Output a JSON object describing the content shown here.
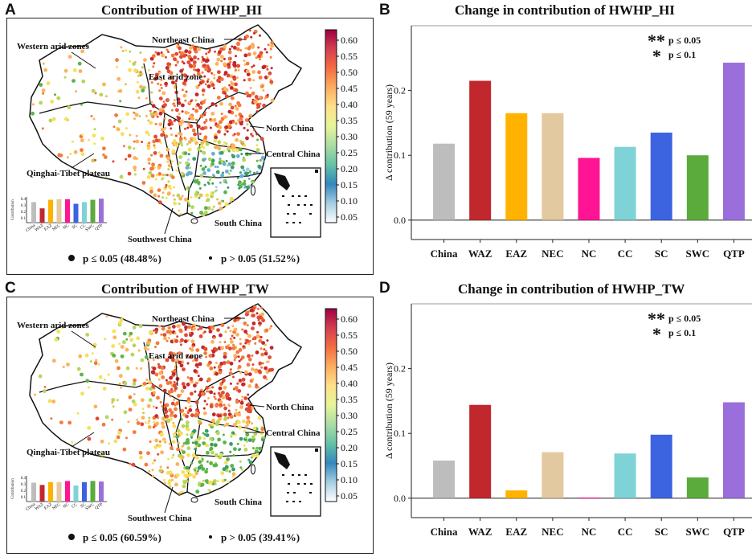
{
  "panels": {
    "A": {
      "letter": "A",
      "title": "Contribution of HWHP_HI",
      "legend_sig": "p ≤ 0.05 (48.48%)",
      "legend_nonsig": "p > 0.05 (51.52%)"
    },
    "B": {
      "letter": "B",
      "title": "Change in contribution of HWHP_HI"
    },
    "C": {
      "letter": "C",
      "title": "Contribution of HWHP_TW",
      "legend_sig": "p ≤ 0.05 (60.59%)",
      "legend_nonsig": "p > 0.05 (39.41%)"
    },
    "D": {
      "letter": "D",
      "title": "Change in contribution of HWHP_TW"
    }
  },
  "region_labels": {
    "western": "Western arid zones",
    "northeast": "Northeast China",
    "east_arid": "East arid zone",
    "north": "North China",
    "central": "Central China",
    "qtp": "Qinghai-Tibet plateau",
    "south": "South China",
    "southwest": "Southwest China"
  },
  "colorbar": {
    "ticks": [
      "0.60",
      "0.55",
      "0.50",
      "0.45",
      "0.40",
      "0.35",
      "0.30",
      "0.25",
      "0.20",
      "0.15",
      "0.10",
      "0.05"
    ],
    "colors": [
      "#9e0142",
      "#d53e4f",
      "#f46d43",
      "#fdae61",
      "#fee08b",
      "#e6f598",
      "#abdda4",
      "#66c2a5",
      "#3288bd",
      "#a6cee3",
      "#ffffff"
    ]
  },
  "inset_ylabel": "Contribution",
  "inset_yticks": [
    "0.4",
    "0.3",
    "0.2",
    "0.1"
  ],
  "sig_legend": {
    "double_star": "**",
    "single_star": "*",
    "p05": "p ≤ 0.05",
    "p1": "p ≤ 0.1"
  },
  "chart_data": [
    {
      "type": "bar",
      "panel": "B",
      "title": "Change in contribution of HWHP_HI",
      "xlabel": "",
      "ylabel": "Δ contribution (59 years)",
      "categories": [
        "China",
        "WAZ",
        "EAZ",
        "NEC",
        "NC",
        "CC",
        "SC",
        "SWC",
        "QTP"
      ],
      "values": [
        0.118,
        0.215,
        0.165,
        0.165,
        0.096,
        0.113,
        0.135,
        0.1,
        0.243
      ],
      "colors": [
        "#bdbdbd",
        "#c0282d",
        "#ffb300",
        "#e3c9a0",
        "#ff1493",
        "#7fd3d6",
        "#3c63e0",
        "#5aab3c",
        "#9a6fdc"
      ],
      "yticks": [
        "0.0",
        "0.1",
        "0.2"
      ],
      "ylim": [
        -0.03,
        0.3
      ]
    },
    {
      "type": "bar",
      "panel": "D",
      "title": "Change in contribution of HWHP_TW",
      "xlabel": "",
      "ylabel": "Δ contribution (59 years)",
      "categories": [
        "China",
        "WAZ",
        "EAZ",
        "NEC",
        "NC",
        "CC",
        "SC",
        "SWC",
        "QTP"
      ],
      "values": [
        0.058,
        0.144,
        0.012,
        0.071,
        0.001,
        0.069,
        0.098,
        0.032,
        0.148
      ],
      "colors": [
        "#bdbdbd",
        "#c0282d",
        "#ffb300",
        "#e3c9a0",
        "#ff1493",
        "#7fd3d6",
        "#3c63e0",
        "#5aab3c",
        "#9a6fdc"
      ],
      "yticks": [
        "0.0",
        "0.1",
        "0.2"
      ],
      "ylim": [
        -0.03,
        0.3
      ]
    },
    {
      "type": "bar",
      "panel": "A-inset",
      "ylabel": "Contribution",
      "categories": [
        "China",
        "WAZ",
        "EAZ",
        "NEC",
        "NC",
        "SC",
        "CC",
        "SWC",
        "QTP"
      ],
      "values": [
        0.36,
        0.25,
        0.4,
        0.41,
        0.41,
        0.33,
        0.36,
        0.4,
        0.42
      ],
      "colors": [
        "#bdbdbd",
        "#c0282d",
        "#ffb300",
        "#e3c9a0",
        "#ff1493",
        "#3c63e0",
        "#7fd3d6",
        "#5aab3c",
        "#9a6fdc"
      ],
      "ylim": [
        0,
        0.45
      ]
    },
    {
      "type": "bar",
      "panel": "C-inset",
      "ylabel": "Contribution",
      "categories": [
        "China",
        "WAZ",
        "EAZ",
        "NEC",
        "NC",
        "CC",
        "SC",
        "SWC",
        "QTP"
      ],
      "values": [
        0.33,
        0.29,
        0.34,
        0.34,
        0.36,
        0.28,
        0.34,
        0.36,
        0.35
      ],
      "colors": [
        "#bdbdbd",
        "#c0282d",
        "#ffb300",
        "#e3c9a0",
        "#ff1493",
        "#7fd3d6",
        "#3c63e0",
        "#5aab3c",
        "#9a6fdc"
      ],
      "ylim": [
        0,
        0.45
      ]
    }
  ]
}
